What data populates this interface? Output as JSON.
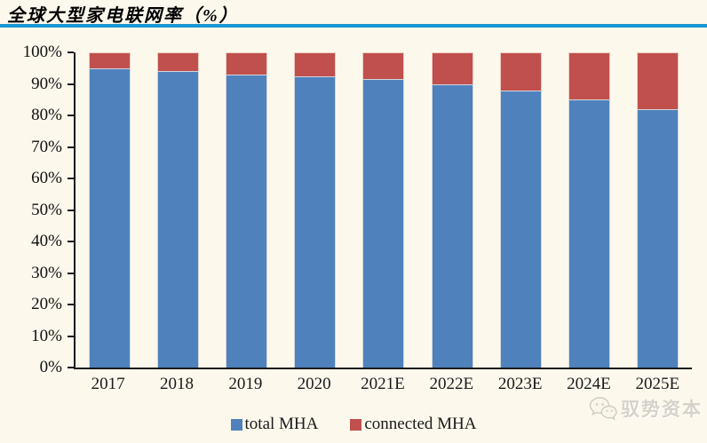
{
  "page": {
    "watermark_text": "驭势资本"
  },
  "colors": {
    "background": "#FDF8EC",
    "title_rule": "#1897D5",
    "axis": "#1A1A1A",
    "watermark": "#D5D2C8"
  },
  "chart_data": {
    "type": "bar",
    "stacked": true,
    "title": "全球大型家电联网率（%）",
    "categories": [
      "2017",
      "2018",
      "2019",
      "2020",
      "2021E",
      "2022E",
      "2023E",
      "2024E",
      "2025E"
    ],
    "series": [
      {
        "name": "total MHA",
        "color": "#4F81BD",
        "values": [
          95,
          94,
          93,
          92.5,
          91.5,
          90,
          88,
          85,
          82
        ]
      },
      {
        "name": "connected MHA",
        "color": "#C0504D",
        "values": [
          5,
          6,
          7,
          7.5,
          8.5,
          10,
          12,
          15,
          18
        ]
      }
    ],
    "ylim": [
      0,
      100
    ],
    "ytick_step": 10,
    "ytick_labels": [
      "0%",
      "10%",
      "20%",
      "30%",
      "40%",
      "50%",
      "60%",
      "70%",
      "80%",
      "90%",
      "100%"
    ],
    "grid": false,
    "legend_position": "bottom"
  }
}
